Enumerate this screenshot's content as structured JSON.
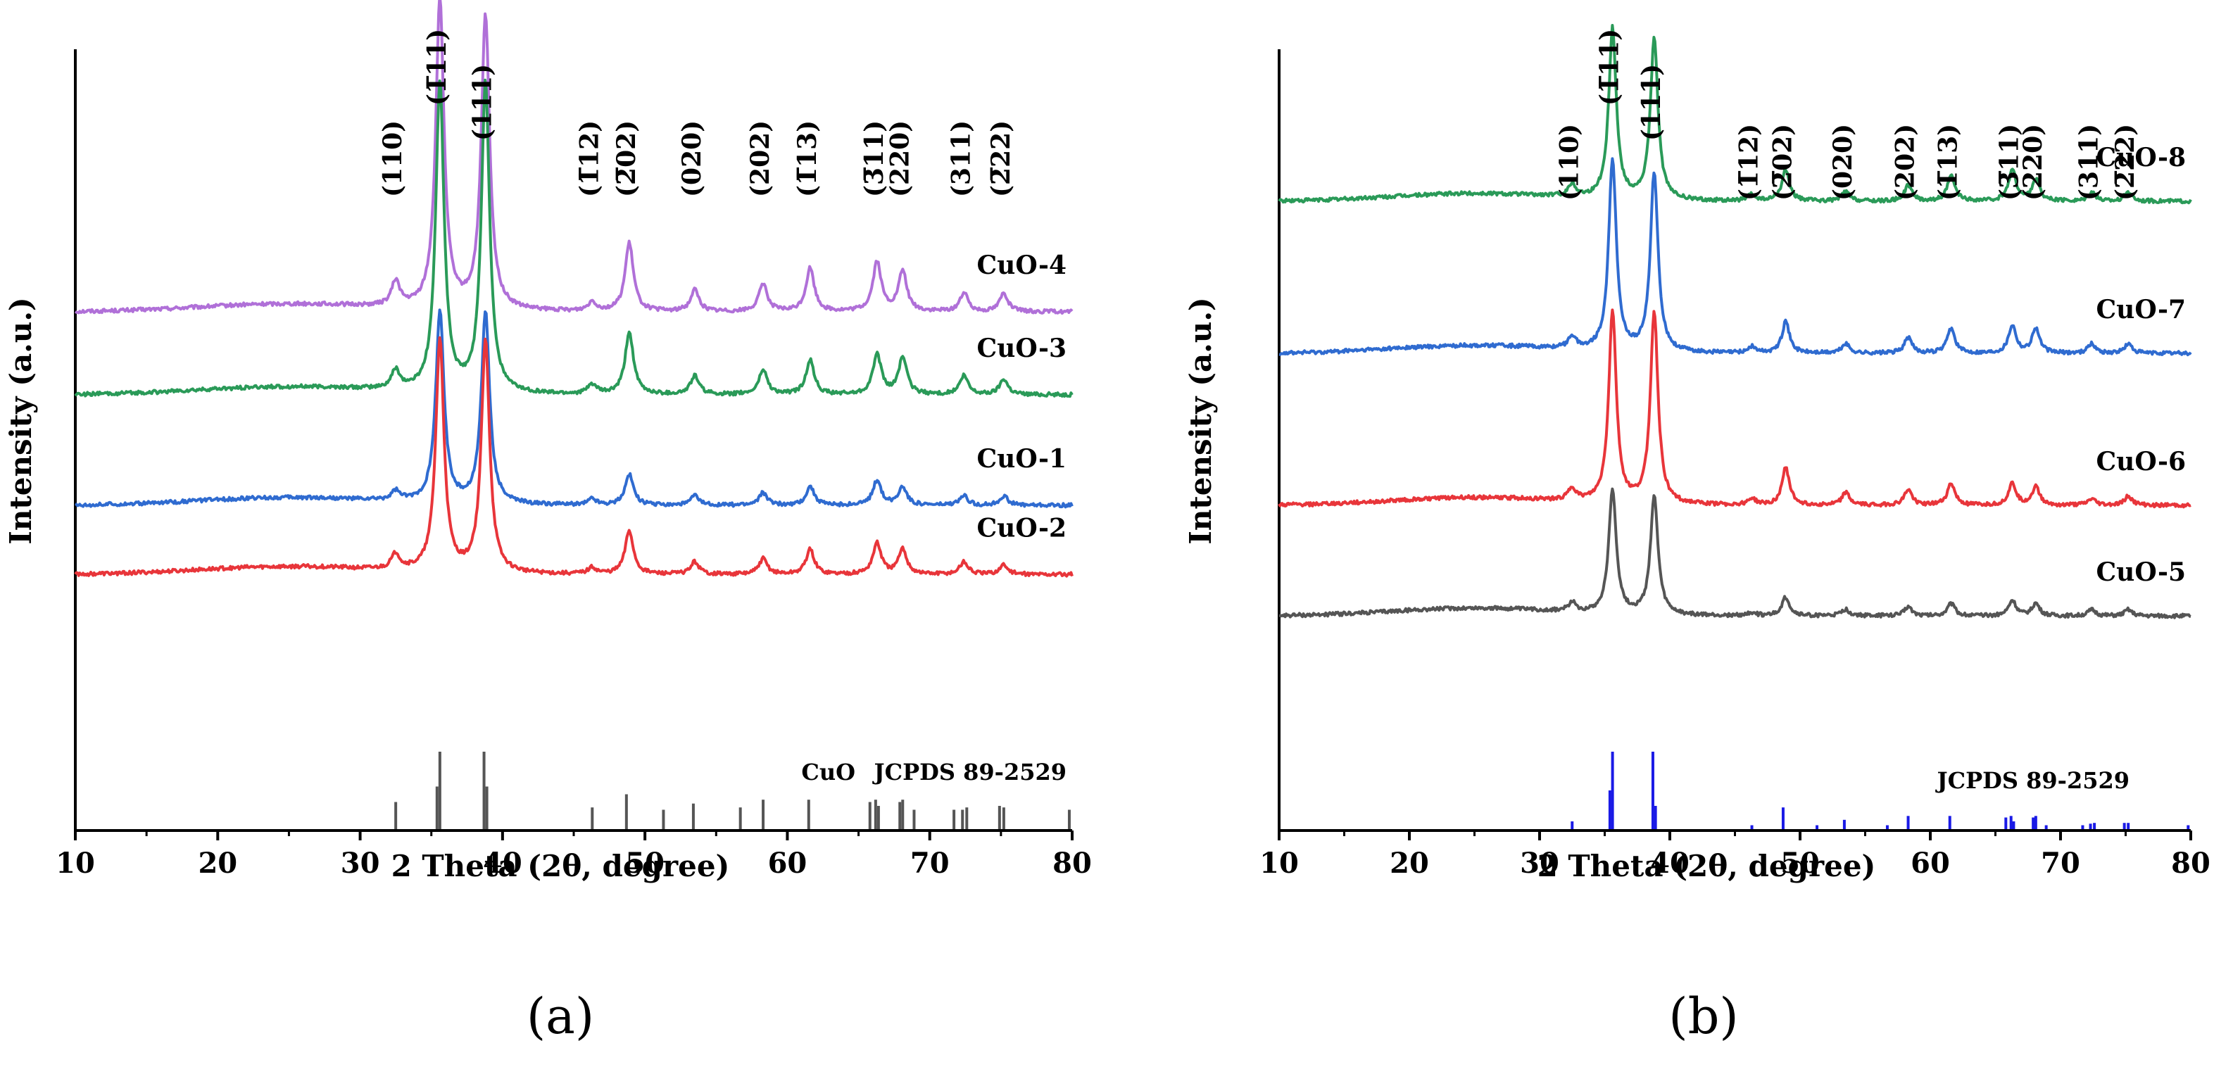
{
  "chart_data": [
    {
      "type": "line",
      "panel_label": "(a)",
      "xlabel": "2 Theta (2θ, degree)",
      "ylabel": "Intensity (a.u.)",
      "xlim": [
        10,
        80
      ],
      "xticks": [
        "10",
        "20",
        "30",
        "40",
        "50",
        "60",
        "70",
        "80"
      ],
      "peaks": [
        32.5,
        35.6,
        38.8,
        46.3,
        48.9,
        53.5,
        58.3,
        61.6,
        66.3,
        68.1,
        72.4,
        75.2
      ],
      "hkl_labels": [
        "(110)",
        "(1̅11)",
        "(111)",
        "(1̅12)",
        "(2̅02)",
        "(020)",
        "(202)",
        "(1̅13)",
        "(3̅11)",
        "(220)",
        "(311)",
        "(2̅22)"
      ],
      "series": [
        {
          "name": "CuO-4",
          "color": "#b070d8",
          "baseline": 0.62,
          "heights": [
            0.08,
            1.0,
            0.95,
            0.03,
            0.22,
            0.07,
            0.09,
            0.14,
            0.16,
            0.13,
            0.06,
            0.06
          ]
        },
        {
          "name": "CuO-3",
          "color": "#2a9a58",
          "baseline": 0.5,
          "heights": [
            0.06,
            1.0,
            1.0,
            0.03,
            0.2,
            0.06,
            0.08,
            0.11,
            0.13,
            0.12,
            0.06,
            0.05
          ]
        },
        {
          "name": "CuO-1",
          "color": "#2f6bd0",
          "baseline": 0.34,
          "heights": [
            0.03,
            0.62,
            0.62,
            0.02,
            0.1,
            0.03,
            0.04,
            0.06,
            0.08,
            0.06,
            0.03,
            0.03
          ]
        },
        {
          "name": "CuO-2",
          "color": "#e8353a",
          "baseline": 0.24,
          "heights": [
            0.05,
            0.75,
            0.75,
            0.02,
            0.14,
            0.04,
            0.05,
            0.08,
            0.1,
            0.08,
            0.04,
            0.03
          ]
        }
      ],
      "reference": {
        "label_compound": "CuO",
        "label_card": "JCPDS 89-2529",
        "color": "#555555",
        "positions": [
          32.5,
          35.4,
          35.6,
          38.7,
          38.9,
          46.3,
          48.7,
          51.3,
          53.4,
          56.7,
          58.3,
          61.5,
          65.8,
          66.2,
          66.4,
          67.9,
          68.1,
          68.9,
          71.7,
          72.3,
          72.6,
          74.9,
          75.2,
          79.8
        ],
        "intensities": [
          0.35,
          0.55,
          1.0,
          1.0,
          0.55,
          0.28,
          0.45,
          0.25,
          0.33,
          0.28,
          0.38,
          0.38,
          0.35,
          0.38,
          0.3,
          0.35,
          0.38,
          0.25,
          0.25,
          0.25,
          0.28,
          0.3,
          0.28,
          0.25
        ]
      }
    },
    {
      "type": "line",
      "panel_label": "(b)",
      "xlabel": "2 Theta (2θ, degree)",
      "ylabel": "Intensity (a.u.)",
      "xlim": [
        10,
        80
      ],
      "xticks": [
        "10",
        "20",
        "30",
        "40",
        "50",
        "60",
        "70",
        "80"
      ],
      "peaks": [
        32.5,
        35.6,
        38.8,
        46.3,
        48.9,
        53.5,
        58.3,
        61.6,
        66.3,
        68.1,
        72.4,
        75.2
      ],
      "hkl_labels": [
        "(110)",
        "(1̅11)",
        "(111)",
        "(1̅12)",
        "(2̅02)",
        "(020)",
        "(202)",
        "(1̅13)",
        "(3̅11)",
        "(220)",
        "(311)",
        "(2̅22)"
      ],
      "series": [
        {
          "name": "CuO-8",
          "color": "#2a9a58",
          "baseline": 0.78,
          "heights": [
            0.04,
            0.55,
            0.52,
            0.02,
            0.1,
            0.03,
            0.05,
            0.08,
            0.1,
            0.07,
            0.03,
            0.03
          ]
        },
        {
          "name": "CuO-7",
          "color": "#2f6bd0",
          "baseline": 0.56,
          "heights": [
            0.04,
            0.62,
            0.58,
            0.02,
            0.1,
            0.03,
            0.05,
            0.08,
            0.09,
            0.08,
            0.03,
            0.03
          ]
        },
        {
          "name": "CuO-6",
          "color": "#e8353a",
          "baseline": 0.34,
          "heights": [
            0.04,
            0.62,
            0.62,
            0.02,
            0.12,
            0.04,
            0.05,
            0.07,
            0.07,
            0.06,
            0.02,
            0.03
          ]
        },
        {
          "name": "CuO-5",
          "color": "#555555",
          "baseline": 0.18,
          "heights": [
            0.03,
            0.4,
            0.38,
            0.01,
            0.06,
            0.02,
            0.03,
            0.04,
            0.05,
            0.04,
            0.02,
            0.02
          ]
        }
      ],
      "reference": {
        "label_compound": "",
        "label_card": "JCPDS 89-2529",
        "color": "#1a1ae6",
        "positions": [
          32.5,
          35.4,
          35.6,
          38.7,
          38.9,
          46.3,
          48.7,
          51.3,
          53.4,
          56.7,
          58.3,
          61.5,
          65.8,
          66.2,
          66.4,
          67.9,
          68.1,
          68.9,
          71.7,
          72.3,
          72.6,
          74.9,
          75.2,
          79.8
        ],
        "intensities": [
          0.1,
          0.5,
          1.0,
          1.0,
          0.3,
          0.05,
          0.28,
          0.05,
          0.12,
          0.05,
          0.17,
          0.17,
          0.15,
          0.17,
          0.1,
          0.15,
          0.17,
          0.05,
          0.05,
          0.07,
          0.08,
          0.08,
          0.08,
          0.05
        ]
      }
    }
  ]
}
